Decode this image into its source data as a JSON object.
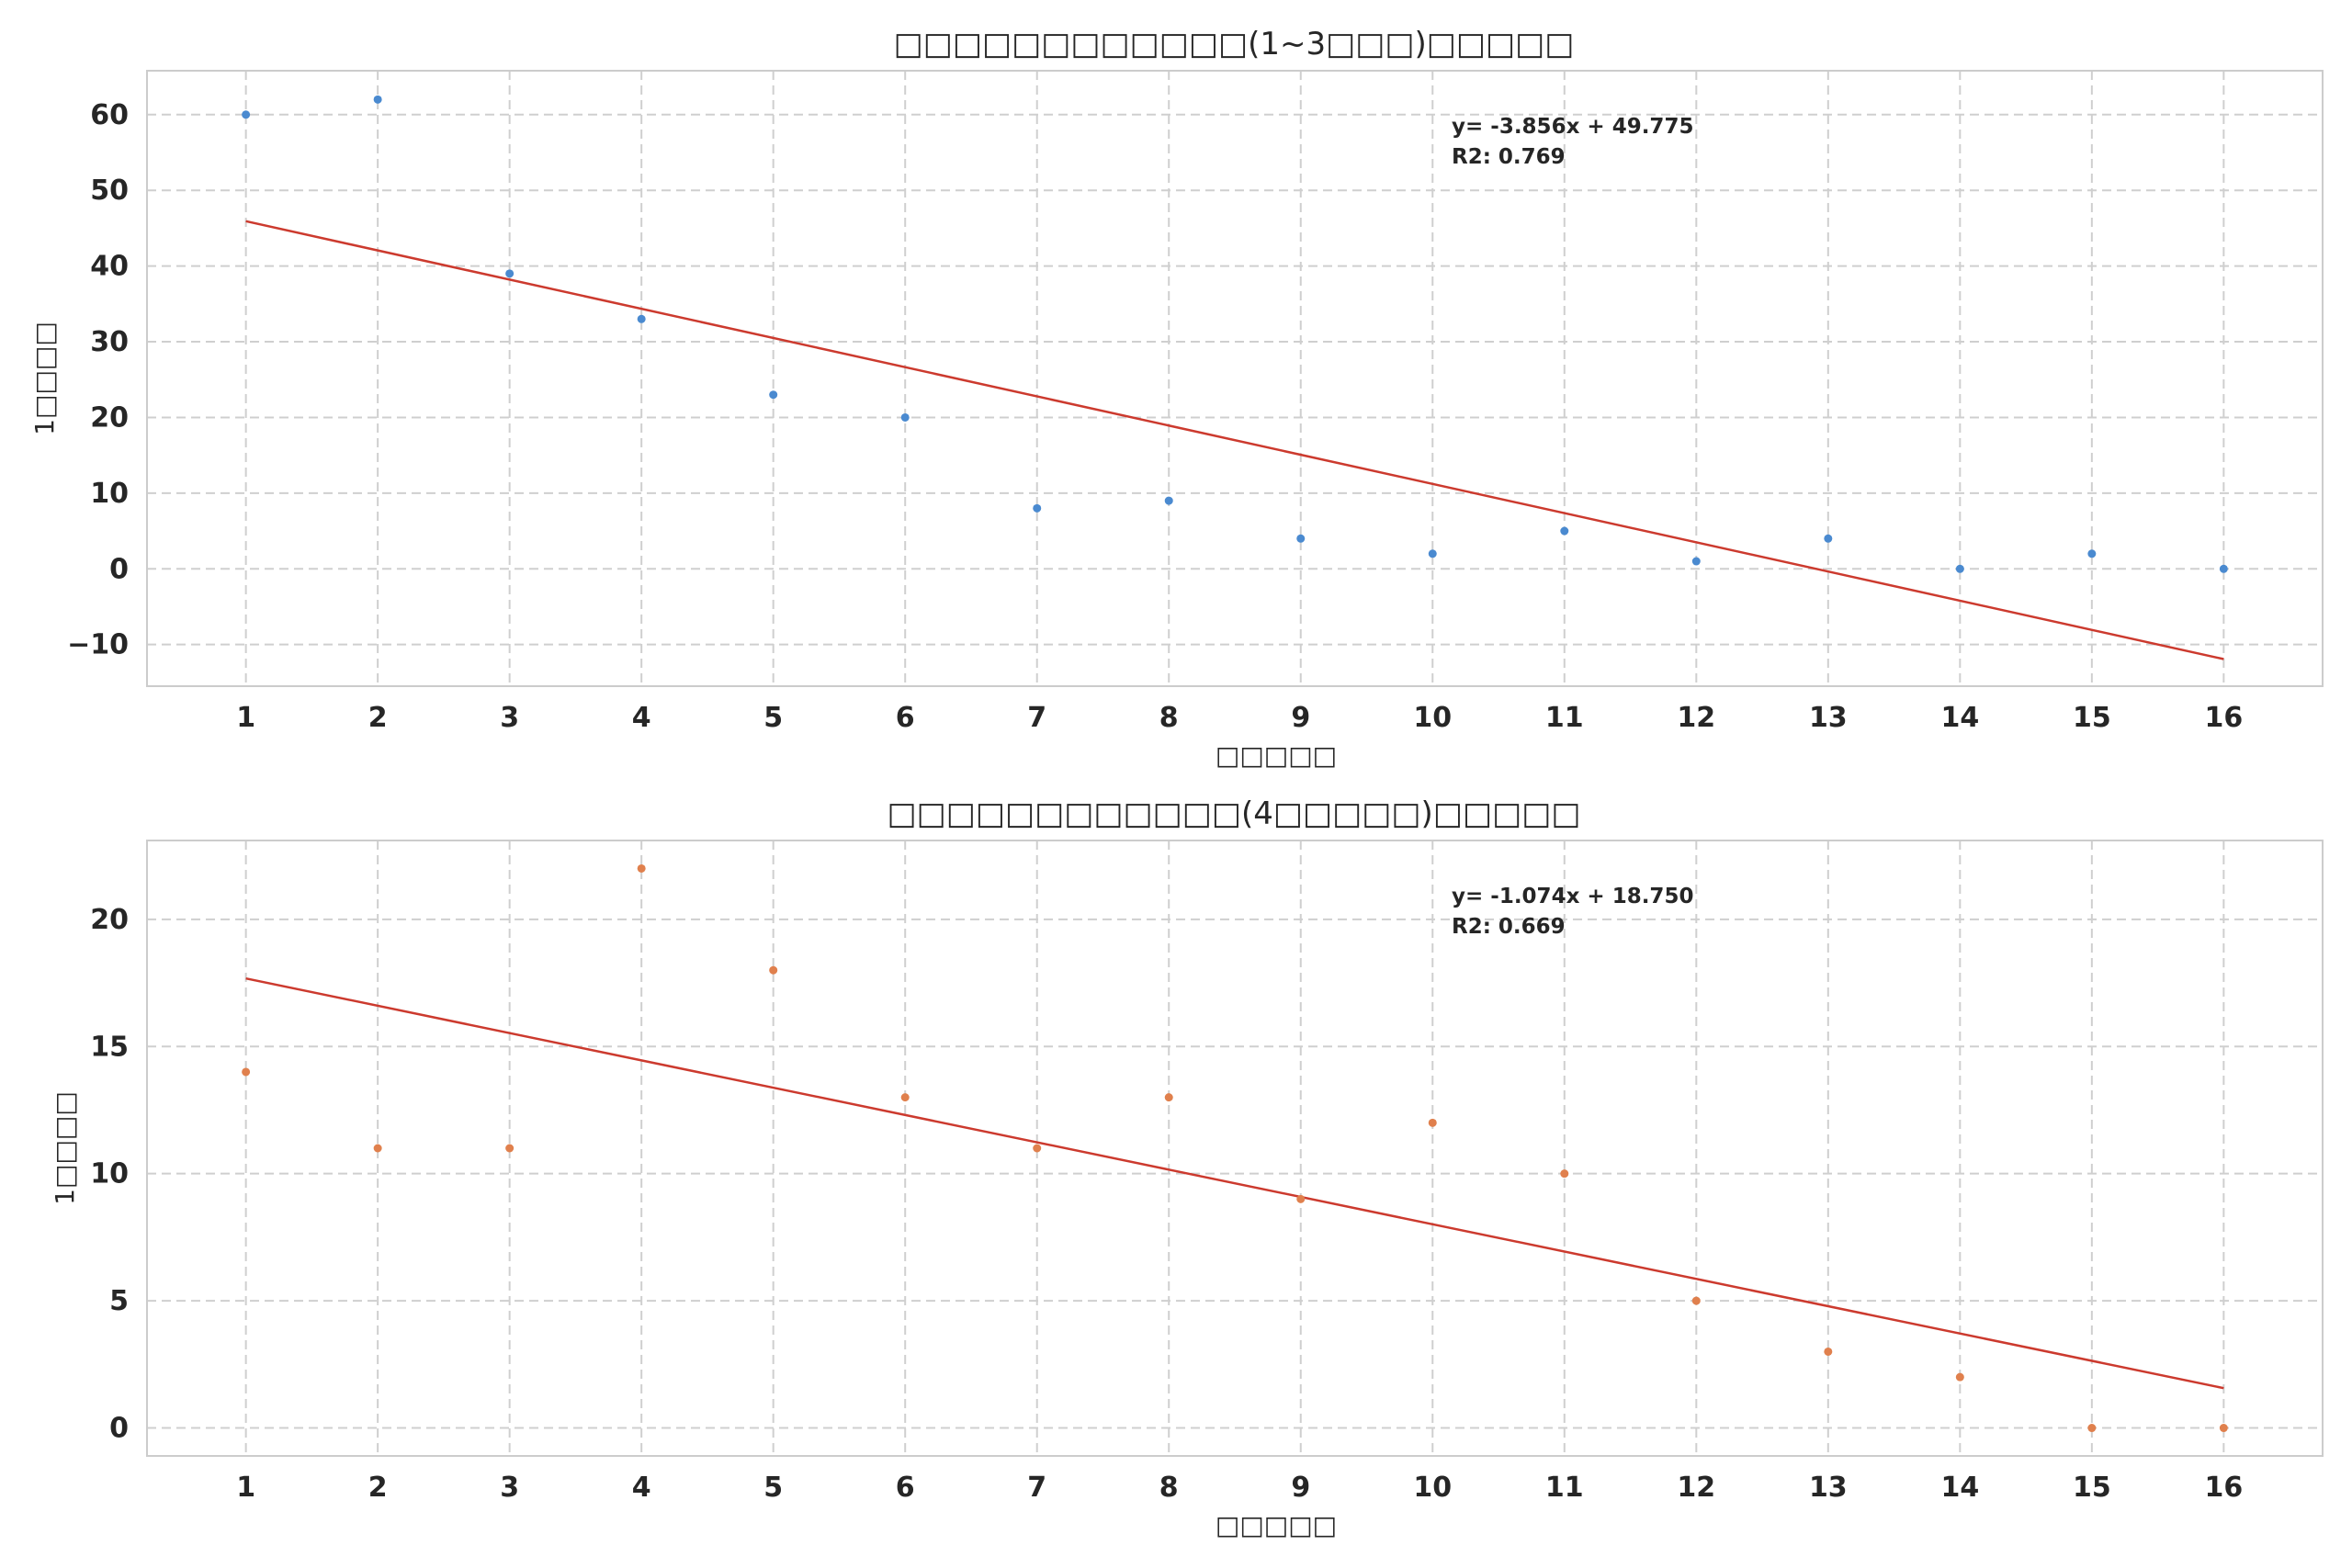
{
  "chart_data": [
    {
      "type": "scatter",
      "title": "□□□□□□□□□□□□(1~3□□□)□□□□□",
      "xlabel": "□□□□□",
      "ylabel": "1□□□□",
      "x": [
        1,
        2,
        3,
        4,
        5,
        6,
        7,
        8,
        9,
        10,
        11,
        12,
        13,
        14,
        15,
        16
      ],
      "xlim": [
        0.25,
        16.75
      ],
      "ylim": [
        -15.5,
        65.8
      ],
      "xticks": [
        1,
        2,
        3,
        4,
        5,
        6,
        7,
        8,
        9,
        10,
        11,
        12,
        13,
        14,
        15,
        16
      ],
      "yticks": [
        -10,
        0,
        10,
        20,
        30,
        40,
        50,
        60
      ],
      "ytick_labels": [
        "−10",
        "0",
        "10",
        "20",
        "30",
        "40",
        "50",
        "60"
      ],
      "grid": true,
      "series": [
        {
          "values": [
            60,
            62,
            39,
            33,
            23,
            20,
            8,
            9,
            4,
            2,
            5,
            1,
            4,
            0,
            2,
            0
          ],
          "color": "#4a8ad0"
        }
      ],
      "regression": {
        "slope": -3.856,
        "intercept": 49.775,
        "color": "#cc3a2e"
      },
      "annotation": {
        "line1": "y= -3.856x + 49.775",
        "line2": "R2: 0.769"
      }
    },
    {
      "type": "scatter",
      "title": "□□□□□□□□□□□□(4□□□□□)□□□□□",
      "xlabel": "□□□□□",
      "ylabel": "1□□□□",
      "x": [
        1,
        2,
        3,
        4,
        5,
        6,
        7,
        8,
        9,
        10,
        11,
        12,
        13,
        14,
        15,
        16
      ],
      "xlim": [
        0.25,
        16.75
      ],
      "ylim": [
        -1.1,
        23.1
      ],
      "xticks": [
        1,
        2,
        3,
        4,
        5,
        6,
        7,
        8,
        9,
        10,
        11,
        12,
        13,
        14,
        15,
        16
      ],
      "yticks": [
        0,
        5,
        10,
        15,
        20
      ],
      "ytick_labels": [
        "0",
        "5",
        "10",
        "15",
        "20"
      ],
      "grid": true,
      "series": [
        {
          "values": [
            14,
            11,
            11,
            22,
            18,
            13,
            11,
            13,
            9,
            12,
            10,
            5,
            3,
            2,
            0,
            0
          ],
          "color": "#e0804d"
        }
      ],
      "regression": {
        "slope": -1.074,
        "intercept": 18.75,
        "color": "#cc3a2e"
      },
      "annotation": {
        "line1": "y= -1.074x + 18.750",
        "line2": "R2: 0.669"
      }
    }
  ]
}
